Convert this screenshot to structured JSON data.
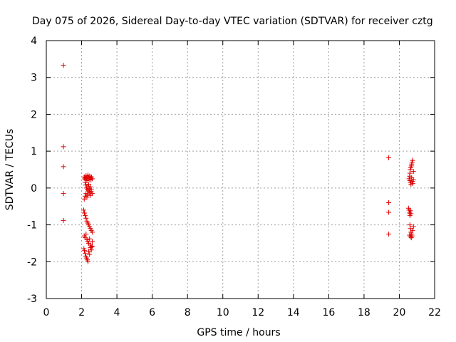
{
  "chart_data": {
    "type": "scatter",
    "title": "Day 075 of 2026, Sidereal Day-to-day VTEC variation (SDTVAR) for receiver cztg",
    "xlabel": "GPS time / hours",
    "ylabel": "SDTVAR / TECUs",
    "xlim": [
      0,
      22
    ],
    "ylim": [
      -3,
      4
    ],
    "xticks": [
      "0",
      "2",
      "4",
      "6",
      "8",
      "10",
      "12",
      "14",
      "16",
      "18",
      "20",
      "22"
    ],
    "yticks": [
      "-3",
      "-2",
      "-1",
      "0",
      "1",
      "2",
      "3",
      "4"
    ],
    "grid": true,
    "marker": "+",
    "color": "#e00000",
    "series": [
      {
        "name": "SDTVAR",
        "x": [
          0.97,
          0.97,
          0.97,
          0.97,
          0.97,
          2.15,
          2.18,
          2.2,
          2.22,
          2.25,
          2.28,
          2.3,
          2.33,
          2.36,
          2.4,
          2.43,
          2.46,
          2.5,
          2.53,
          2.56,
          2.6,
          2.2,
          2.24,
          2.28,
          2.32,
          2.36,
          2.4,
          2.45,
          2.5,
          2.55,
          2.15,
          2.2,
          2.25,
          2.3,
          2.35,
          2.4,
          2.45,
          2.5,
          2.55,
          2.6,
          2.12,
          2.16,
          2.2,
          2.25,
          2.3,
          2.35,
          2.4,
          2.45,
          2.5,
          2.55,
          2.6,
          2.15,
          2.2,
          2.25,
          2.3,
          2.35,
          2.4,
          2.45,
          2.5,
          2.55,
          2.6,
          2.13,
          2.16,
          2.2,
          2.24,
          2.28,
          2.32,
          2.36,
          2.4,
          2.45,
          2.5,
          2.55,
          2.6,
          19.4,
          19.4,
          19.4,
          19.4,
          20.55,
          20.58,
          20.6,
          20.62,
          20.65,
          20.68,
          20.7,
          20.72,
          20.75,
          20.8,
          20.6,
          20.63,
          20.66,
          20.7,
          20.73,
          20.76,
          20.8,
          20.52,
          20.55,
          20.58,
          20.6,
          20.63,
          20.66,
          20.6,
          20.63,
          20.66,
          20.7,
          20.72,
          20.75,
          20.8,
          20.58,
          20.62,
          20.68
        ],
        "y": [
          3.33,
          1.12,
          0.58,
          -0.15,
          -0.88,
          0.3,
          0.25,
          0.22,
          0.28,
          0.33,
          0.26,
          0.2,
          0.3,
          0.35,
          0.28,
          0.24,
          0.32,
          0.27,
          0.22,
          0.3,
          0.25,
          0.15,
          0.08,
          0.0,
          -0.05,
          0.05,
          0.1,
          -0.02,
          0.03,
          -0.1,
          -0.3,
          -0.22,
          -0.15,
          -0.25,
          -0.18,
          -0.08,
          -0.12,
          -0.2,
          -0.05,
          -0.15,
          -0.6,
          -0.68,
          -0.75,
          -0.82,
          -0.9,
          -0.95,
          -1.0,
          -1.05,
          -1.1,
          -1.15,
          -1.2,
          -1.3,
          -1.35,
          -1.25,
          -1.4,
          -1.45,
          -1.5,
          -1.38,
          -1.55,
          -1.6,
          -1.45,
          -1.65,
          -1.7,
          -1.78,
          -1.85,
          -1.9,
          -1.95,
          -2.0,
          -1.72,
          -1.8,
          -1.62,
          -1.68,
          -1.58,
          0.82,
          -0.4,
          -0.66,
          -1.25,
          0.25,
          0.32,
          0.4,
          0.5,
          0.55,
          0.6,
          0.65,
          0.7,
          0.75,
          0.45,
          0.2,
          0.15,
          0.1,
          0.28,
          0.18,
          0.12,
          0.22,
          -0.55,
          -0.6,
          -0.68,
          -0.75,
          -0.62,
          -0.7,
          -1.0,
          -1.1,
          -1.2,
          -1.25,
          -1.3,
          -1.15,
          -1.05,
          -1.28,
          -1.32,
          -1.35
        ]
      }
    ]
  }
}
